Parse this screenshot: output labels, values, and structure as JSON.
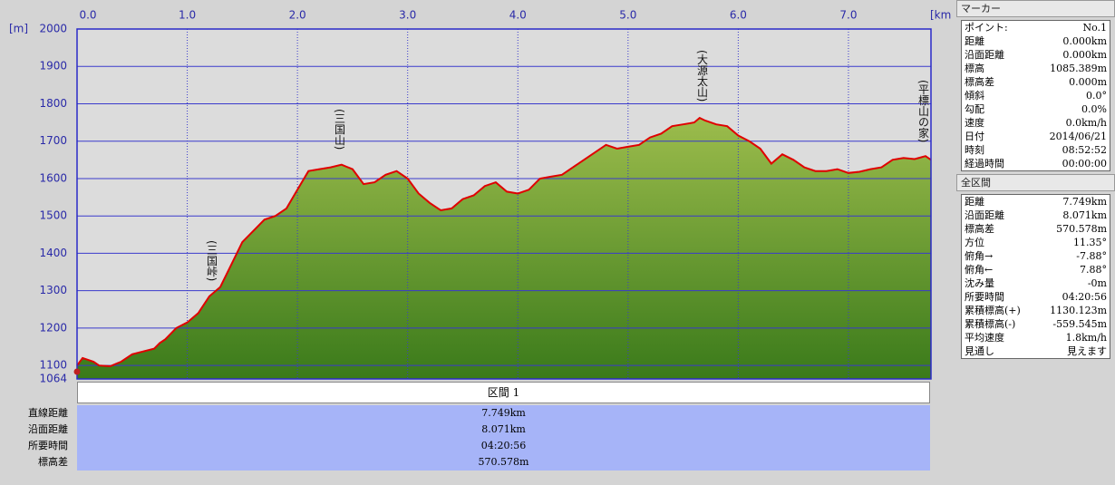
{
  "chart_data": {
    "type": "area",
    "ylabel": "[m]",
    "xlabel": "[km]",
    "xlim": [
      0,
      7.749
    ],
    "ylim": [
      1064,
      2000
    ],
    "xticks": [
      {
        "value": 0,
        "label": "0.0"
      },
      {
        "value": 1,
        "label": "1.0"
      },
      {
        "value": 2,
        "label": "2.0"
      },
      {
        "value": 3,
        "label": "3.0"
      },
      {
        "value": 4,
        "label": "4.0"
      },
      {
        "value": 5,
        "label": "5.0"
      },
      {
        "value": 6,
        "label": "6.0"
      },
      {
        "value": 7,
        "label": "7.0"
      }
    ],
    "yticks": [
      1064,
      1100,
      1200,
      1300,
      1400,
      1500,
      1600,
      1700,
      1800,
      1900,
      2000
    ],
    "grid": true,
    "color": "#e00000",
    "fill": "#7da43c",
    "x": [
      0,
      0.05,
      0.15,
      0.2,
      0.3,
      0.4,
      0.5,
      0.7,
      0.75,
      0.8,
      0.9,
      1.0,
      1.1,
      1.2,
      1.3,
      1.4,
      1.5,
      1.6,
      1.7,
      1.8,
      1.9,
      2.0,
      2.1,
      2.2,
      2.3,
      2.4,
      2.5,
      2.6,
      2.7,
      2.8,
      2.9,
      3.0,
      3.1,
      3.2,
      3.3,
      3.4,
      3.5,
      3.6,
      3.7,
      3.8,
      3.9,
      4.0,
      4.1,
      4.2,
      4.3,
      4.4,
      4.5,
      4.6,
      4.7,
      4.8,
      4.9,
      5.0,
      5.1,
      5.2,
      5.3,
      5.4,
      5.5,
      5.6,
      5.65,
      5.7,
      5.8,
      5.9,
      6.0,
      6.1,
      6.2,
      6.3,
      6.4,
      6.5,
      6.6,
      6.7,
      6.8,
      6.9,
      7.0,
      7.1,
      7.2,
      7.3,
      7.4,
      7.5,
      7.6,
      7.7,
      7.749
    ],
    "values": [
      1100,
      1120,
      1110,
      1100,
      1098,
      1110,
      1130,
      1145,
      1160,
      1170,
      1200,
      1215,
      1240,
      1285,
      1310,
      1370,
      1430,
      1460,
      1490,
      1500,
      1520,
      1570,
      1620,
      1625,
      1630,
      1637,
      1625,
      1585,
      1590,
      1610,
      1620,
      1600,
      1560,
      1535,
      1515,
      1520,
      1545,
      1555,
      1580,
      1590,
      1565,
      1560,
      1570,
      1600,
      1605,
      1610,
      1630,
      1650,
      1670,
      1690,
      1680,
      1685,
      1690,
      1710,
      1720,
      1740,
      1745,
      1750,
      1762,
      1755,
      1745,
      1740,
      1715,
      1700,
      1680,
      1640,
      1665,
      1650,
      1630,
      1620,
      1620,
      1625,
      1615,
      1618,
      1625,
      1630,
      1650,
      1655,
      1652,
      1660,
      1650
    ],
    "annotations": [
      "(三国峠)",
      "(三国山)",
      "(大源太山)",
      "(平標山の家)"
    ]
  },
  "section_table": {
    "header": "区間 1",
    "rows": [
      [
        "直線距離",
        "7.749km"
      ],
      [
        "沿面距離",
        "8.071km"
      ],
      [
        "所要時間",
        "04:20:56"
      ],
      [
        "標高差",
        "570.578m"
      ]
    ]
  },
  "marker_panel": {
    "title": "マーカー",
    "rows": [
      [
        "ポイント:",
        "No.1"
      ],
      [
        "距離",
        "0.000km"
      ],
      [
        "沿面距離",
        "0.000km"
      ],
      [
        "標高",
        "1085.389m"
      ],
      [
        "標高差",
        "0.000m"
      ],
      [
        "傾斜",
        "0.0°"
      ],
      [
        "勾配",
        "0.0%"
      ],
      [
        "速度",
        "0.0km/h"
      ],
      [
        "日付",
        "2014/06/21"
      ],
      [
        "時刻",
        "08:52:52"
      ],
      [
        "経過時間",
        "00:00:00"
      ]
    ]
  },
  "total_panel": {
    "title": "全区間",
    "rows": [
      [
        "距離",
        "7.749km"
      ],
      [
        "沿面距離",
        "8.071km"
      ],
      [
        "標高差",
        "570.578m"
      ],
      [
        "方位",
        "11.35°"
      ],
      [
        "俯角→",
        "-7.88°"
      ],
      [
        "俯角←",
        "7.88°"
      ],
      [
        "沈み量",
        "-0m"
      ],
      [
        "所要時間",
        "04:20:56"
      ],
      [
        "累積標高(+)",
        "1130.123m"
      ],
      [
        "累積標高(-)",
        "-559.545m"
      ],
      [
        "平均速度",
        "1.8km/h"
      ],
      [
        "見通し",
        "見えます"
      ]
    ]
  }
}
